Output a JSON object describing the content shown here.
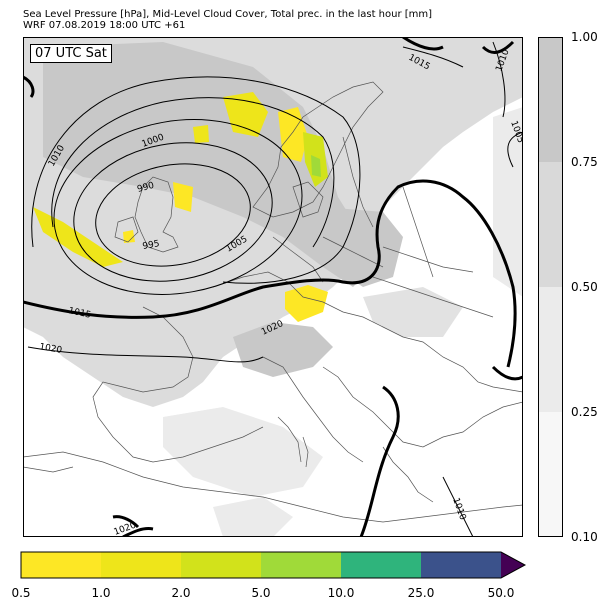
{
  "title": {
    "line1": "Sea Level Pressure [hPa], Mid-Level Cloud Cover, Total prec. in the last hour [mm]",
    "line2": "WRF 07.08.2019 18:00 UTC +61"
  },
  "time_label": "07 UTC Sat",
  "isobar_labels": [
    "1015",
    "1010",
    "1005",
    "1010",
    "1000",
    "990",
    "995",
    "1005",
    "1015",
    "1020",
    "1020",
    "1020",
    "1010"
  ],
  "cloud_colorbar": {
    "ticks": [
      "1.00",
      "0.75",
      "0.50",
      "0.25",
      "0.10"
    ],
    "colors": [
      "#c8c8c8",
      "#d9d9d9",
      "#ebebeb",
      "#f7f7f7"
    ]
  },
  "precip_colorbar": {
    "ticks": [
      "0.5",
      "1.0",
      "2.0",
      "5.0",
      "10.0",
      "25.0",
      "50.0"
    ],
    "colors": [
      "#fde725",
      "#eee51a",
      "#d2e21b",
      "#a0da39",
      "#2fb47c",
      "#3b528b",
      "#440154"
    ]
  }
}
